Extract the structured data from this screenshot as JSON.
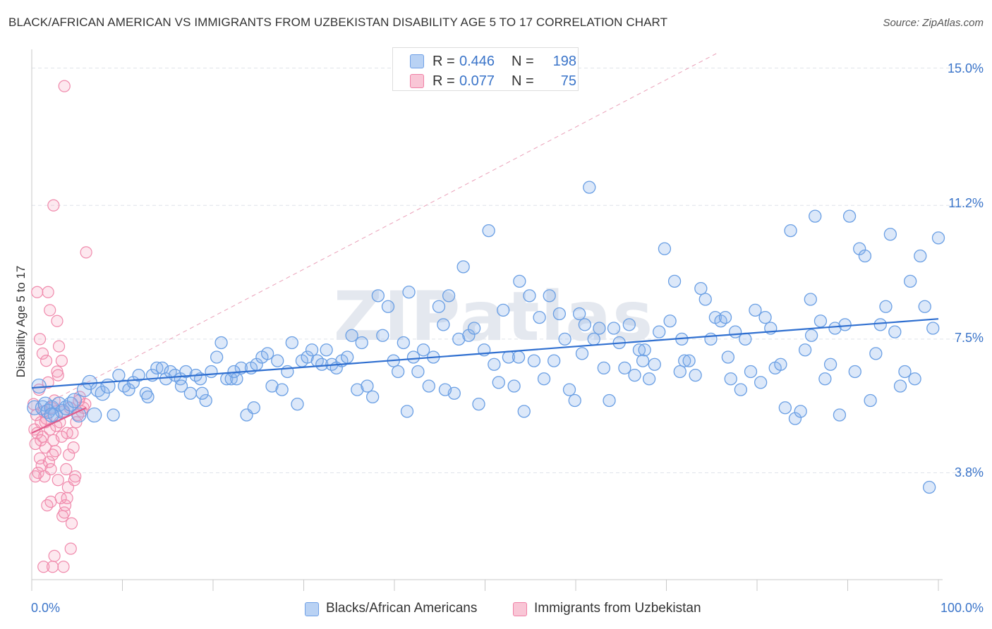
{
  "header": {
    "title": "BLACK/AFRICAN AMERICAN VS IMMIGRANTS FROM UZBEKISTAN DISABILITY AGE 5 TO 17 CORRELATION CHART",
    "source": "Source: ZipAtlas.com"
  },
  "stats": {
    "row1": {
      "r_label": "R =",
      "r_value": "0.446",
      "n_label": "N =",
      "n_value": "198",
      "color": "#6fa0e6"
    },
    "row2": {
      "r_label": "R =",
      "r_value": "0.077",
      "n_label": "N =",
      "n_value": "75",
      "color": "#f080a6"
    }
  },
  "legend": {
    "series1": "Blacks/African Americans",
    "series2": "Immigrants from Uzbekistan"
  },
  "watermark": "ZIPatlas",
  "chart_data": {
    "type": "scatter",
    "title": "BLACK/AFRICAN AMERICAN VS IMMIGRANTS FROM UZBEKISTAN DISABILITY AGE 5 TO 17 CORRELATION CHART",
    "ylabel": "Disability Age 5 to 17",
    "xlabel": "",
    "x_ticks": [
      "0.0%",
      "100.0%"
    ],
    "y_ticks": [
      "3.8%",
      "7.5%",
      "11.2%",
      "15.0%"
    ],
    "y_tick_values": [
      3.8,
      7.5,
      11.2,
      15.0
    ],
    "xlim": [
      0,
      100
    ],
    "ylim": [
      0.8,
      15.4
    ],
    "grid": "horizontal dashed",
    "legend_position": "bottom-center",
    "colors": {
      "blue": "#6fa0e6",
      "blue_line": "#2f6fd0",
      "pink": "#f080a6",
      "pink_line": "#e05a8a"
    },
    "series": [
      {
        "name": "Blacks/African Americans",
        "trend": {
          "x": [
            0,
            100
          ],
          "y": [
            6.15,
            8.06
          ]
        },
        "points": [
          [
            0.3,
            5.6
          ],
          [
            0.8,
            6.2
          ],
          [
            1.2,
            5.6
          ],
          [
            1.5,
            5.7
          ],
          [
            1.8,
            5.5
          ],
          [
            2.2,
            5.6
          ],
          [
            2.6,
            5.4
          ],
          [
            3,
            5.7
          ],
          [
            3.4,
            5.5
          ],
          [
            3.8,
            5.6
          ],
          [
            4.3,
            5.7
          ],
          [
            4.7,
            5.8
          ],
          [
            5.2,
            5.4
          ],
          [
            5.8,
            6.1
          ],
          [
            6.4,
            6.3
          ],
          [
            6.9,
            5.4
          ],
          [
            7.3,
            6.1
          ],
          [
            7.8,
            6
          ],
          [
            8.4,
            6.2
          ],
          [
            9,
            5.4
          ],
          [
            9.6,
            6.5
          ],
          [
            10.2,
            6.2
          ],
          [
            10.7,
            6.1
          ],
          [
            11.2,
            6.3
          ],
          [
            11.8,
            6.5
          ],
          [
            12.6,
            6
          ],
          [
            12.8,
            5.9
          ],
          [
            13.3,
            6.5
          ],
          [
            13.8,
            6.7
          ],
          [
            14.4,
            6.7
          ],
          [
            14.8,
            6.4
          ],
          [
            15.3,
            6.6
          ],
          [
            15.8,
            6.5
          ],
          [
            16.4,
            6.4
          ],
          [
            17,
            6.6
          ],
          [
            17.5,
            6
          ],
          [
            18.1,
            6.5
          ],
          [
            18.6,
            6.4
          ],
          [
            19.2,
            5.8
          ],
          [
            19.8,
            6.6
          ],
          [
            20.4,
            7
          ],
          [
            20.9,
            7.4
          ],
          [
            21.5,
            6.4
          ],
          [
            22,
            6.4
          ],
          [
            22.6,
            6.4
          ],
          [
            23.1,
            6.7
          ],
          [
            23.7,
            5.4
          ],
          [
            24.2,
            6.7
          ],
          [
            24.8,
            6.8
          ],
          [
            25.4,
            7
          ],
          [
            26,
            7.1
          ],
          [
            26.5,
            6.2
          ],
          [
            27.1,
            6.9
          ],
          [
            27.6,
            6.1
          ],
          [
            28.2,
            6.6
          ],
          [
            28.7,
            7.4
          ],
          [
            29.3,
            5.7
          ],
          [
            29.8,
            6.9
          ],
          [
            30.4,
            7
          ],
          [
            30.9,
            7.2
          ],
          [
            31.5,
            6.9
          ],
          [
            32,
            6.8
          ],
          [
            32.5,
            7.2
          ],
          [
            33.1,
            6.8
          ],
          [
            33.6,
            6.7
          ],
          [
            34.2,
            6.9
          ],
          [
            34.8,
            7
          ],
          [
            35.3,
            7.6
          ],
          [
            35.9,
            6.1
          ],
          [
            36.4,
            7.4
          ],
          [
            37,
            6.2
          ],
          [
            37.6,
            5.9
          ],
          [
            38.2,
            8.7
          ],
          [
            38.7,
            7.6
          ],
          [
            39.3,
            8.4
          ],
          [
            39.9,
            6.9
          ],
          [
            40.4,
            6.6
          ],
          [
            41,
            7.4
          ],
          [
            41.6,
            8.8
          ],
          [
            42.1,
            7
          ],
          [
            42.6,
            6.6
          ],
          [
            43.2,
            7.2
          ],
          [
            43.8,
            6.2
          ],
          [
            44.3,
            7
          ],
          [
            44.9,
            8.4
          ],
          [
            45.4,
            7.9
          ],
          [
            46,
            8.7
          ],
          [
            46.6,
            6
          ],
          [
            47.1,
            7.5
          ],
          [
            47.6,
            9.5
          ],
          [
            48.2,
            7.6
          ],
          [
            48.8,
            7.8
          ],
          [
            49.3,
            5.7
          ],
          [
            49.9,
            7.2
          ],
          [
            50.4,
            10.5
          ],
          [
            51,
            6.8
          ],
          [
            51.5,
            6.3
          ],
          [
            52,
            8.3
          ],
          [
            52.6,
            7
          ],
          [
            53.2,
            6.2
          ],
          [
            53.8,
            9.1
          ],
          [
            54.3,
            5.5
          ],
          [
            54.9,
            8.7
          ],
          [
            55.4,
            6.9
          ],
          [
            56,
            8.1
          ],
          [
            56.5,
            6.4
          ],
          [
            57.1,
            8.7
          ],
          [
            57.6,
            6.9
          ],
          [
            58.2,
            8.2
          ],
          [
            58.8,
            7.5
          ],
          [
            59.3,
            6.1
          ],
          [
            59.9,
            5.8
          ],
          [
            60.4,
            8.2
          ],
          [
            61,
            7.9
          ],
          [
            61.5,
            11.7
          ],
          [
            62,
            7.5
          ],
          [
            62.6,
            7.8
          ],
          [
            63.1,
            6.7
          ],
          [
            63.7,
            5.8
          ],
          [
            64.2,
            7.8
          ],
          [
            64.8,
            7.4
          ],
          [
            65.4,
            6.7
          ],
          [
            65.9,
            7.9
          ],
          [
            66.5,
            6.5
          ],
          [
            67,
            7.2
          ],
          [
            67.6,
            7.2
          ],
          [
            68.1,
            6.4
          ],
          [
            68.7,
            6.8
          ],
          [
            69.2,
            7.7
          ],
          [
            69.8,
            10
          ],
          [
            70.4,
            8
          ],
          [
            70.9,
            9.1
          ],
          [
            71.5,
            6.6
          ],
          [
            72,
            6.9
          ],
          [
            72.5,
            6.9
          ],
          [
            73.2,
            6.5
          ],
          [
            73.8,
            8.9
          ],
          [
            74.3,
            8.6
          ],
          [
            74.9,
            7.5
          ],
          [
            75.4,
            8.1
          ],
          [
            76,
            8
          ],
          [
            76.5,
            8.1
          ],
          [
            77.1,
            6.4
          ],
          [
            77.6,
            7.7
          ],
          [
            78.2,
            6.1
          ],
          [
            78.7,
            7.5
          ],
          [
            79.3,
            6.6
          ],
          [
            79.8,
            8.3
          ],
          [
            80.4,
            6.3
          ],
          [
            80.9,
            8.1
          ],
          [
            81.5,
            7.8
          ],
          [
            82,
            6.7
          ],
          [
            82.6,
            6.8
          ],
          [
            83.1,
            5.6
          ],
          [
            83.7,
            10.5
          ],
          [
            84.2,
            5.3
          ],
          [
            84.8,
            5.5
          ],
          [
            85.3,
            7.2
          ],
          [
            85.9,
            8.6
          ],
          [
            86.4,
            10.9
          ],
          [
            87,
            8
          ],
          [
            87.5,
            6.4
          ],
          [
            88.1,
            6.8
          ],
          [
            88.6,
            7.8
          ],
          [
            89.1,
            5.4
          ],
          [
            89.7,
            7.9
          ],
          [
            90.2,
            10.9
          ],
          [
            90.8,
            6.6
          ],
          [
            91.3,
            10
          ],
          [
            91.9,
            9.8
          ],
          [
            92.5,
            5.8
          ],
          [
            93.1,
            7.1
          ],
          [
            93.6,
            7.9
          ],
          [
            94.2,
            8.4
          ],
          [
            94.7,
            10.4
          ],
          [
            95.2,
            7.7
          ],
          [
            95.8,
            6.2
          ],
          [
            96.3,
            6.6
          ],
          [
            96.9,
            9.1
          ],
          [
            97.4,
            6.4
          ],
          [
            98,
            9.8
          ],
          [
            98.5,
            8.4
          ],
          [
            99,
            3.4
          ],
          [
            99.4,
            7.8
          ],
          [
            100,
            10.3
          ],
          [
            2.2,
            5.4
          ],
          [
            16.5,
            6.2
          ],
          [
            18.8,
            6
          ],
          [
            24.5,
            5.6
          ],
          [
            67.4,
            6.9
          ],
          [
            71.7,
            7.5
          ],
          [
            41.4,
            5.5
          ],
          [
            53.7,
            7
          ],
          [
            60.7,
            7.1
          ],
          [
            86,
            7.6
          ],
          [
            76.8,
            7
          ],
          [
            22.3,
            6.6
          ],
          [
            45.6,
            6.1
          ]
        ]
      },
      {
        "name": "Immigrants from Uzbekistan",
        "trend": {
          "x": [
            0,
            6
          ],
          "y": [
            4.9,
            5.6
          ]
        },
        "points": [
          [
            0.2,
            5.7
          ],
          [
            0.3,
            5
          ],
          [
            0.4,
            4.6
          ],
          [
            0.5,
            5.4
          ],
          [
            0.6,
            4.9
          ],
          [
            0.7,
            3.8
          ],
          [
            0.8,
            6.1
          ],
          [
            0.9,
            4.2
          ],
          [
            1,
            5.2
          ],
          [
            1.1,
            4
          ],
          [
            1.2,
            4.8
          ],
          [
            1.3,
            5.5
          ],
          [
            1.4,
            3.7
          ],
          [
            1.5,
            4.5
          ],
          [
            1.6,
            5.3
          ],
          [
            1.7,
            2.9
          ],
          [
            1.8,
            6.3
          ],
          [
            1.9,
            4.1
          ],
          [
            2,
            5
          ],
          [
            2.1,
            3.9
          ],
          [
            2.2,
            5.6
          ],
          [
            2.3,
            1.2
          ],
          [
            2.4,
            4.7
          ],
          [
            2.5,
            5.8
          ],
          [
            2.6,
            4.4
          ],
          [
            2.7,
            5.1
          ],
          [
            2.8,
            6.6
          ],
          [
            2.9,
            3.6
          ],
          [
            3,
            7.3
          ],
          [
            3.1,
            5.2
          ],
          [
            3.2,
            3.1
          ],
          [
            3.3,
            4.8
          ],
          [
            3.4,
            2.6
          ],
          [
            3.5,
            5.5
          ],
          [
            3.6,
            2.7
          ],
          [
            3.7,
            2.9
          ],
          [
            3.8,
            3.9
          ],
          [
            3.9,
            4.9
          ],
          [
            4,
            3.4
          ],
          [
            4.1,
            4.3
          ],
          [
            4.2,
            5.6
          ],
          [
            4.3,
            1.7
          ],
          [
            4.5,
            4.9
          ],
          [
            4.7,
            3.6
          ],
          [
            4.9,
            5.2
          ],
          [
            5.1,
            5.4
          ],
          [
            5.3,
            5.9
          ],
          [
            5.5,
            5.5
          ],
          [
            5.7,
            5.6
          ],
          [
            5.9,
            5.7
          ],
          [
            1.5,
            5.2
          ],
          [
            0.9,
            7.5
          ],
          [
            2,
            8.3
          ],
          [
            2.5,
            1.5
          ],
          [
            2.8,
            8
          ],
          [
            3.3,
            6.9
          ],
          [
            1.2,
            7.1
          ],
          [
            1.8,
            8.8
          ],
          [
            2.3,
            4.3
          ],
          [
            0.6,
            8.8
          ],
          [
            1,
            4.7
          ],
          [
            3.9,
            3.1
          ],
          [
            0.4,
            3.7
          ],
          [
            1.6,
            6.9
          ],
          [
            2.9,
            6.5
          ],
          [
            4.4,
            2.4
          ],
          [
            2.1,
            3
          ],
          [
            1.3,
            1.2
          ],
          [
            3.5,
            1.2
          ],
          [
            4.8,
            3.7
          ],
          [
            6,
            9.9
          ],
          [
            3.6,
            14.5
          ],
          [
            2.4,
            11.2
          ],
          [
            5.2,
            5.8
          ],
          [
            4.6,
            4.5
          ]
        ]
      }
    ]
  }
}
